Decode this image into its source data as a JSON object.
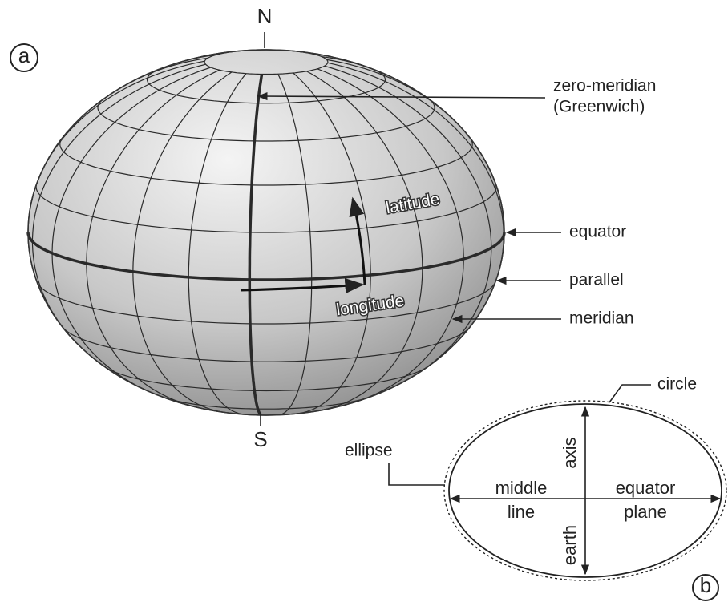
{
  "panel_a": {
    "label": "a",
    "north": "N",
    "south": "S",
    "zero_meridian": [
      "zero-meridian",
      "(Greenwich)"
    ],
    "latitude": "latitude",
    "longitude": "longitude",
    "equator": "equator",
    "parallel": "parallel",
    "meridian": "meridian"
  },
  "panel_b": {
    "label": "b",
    "circle": "circle",
    "ellipse": "ellipse",
    "axis": "axis",
    "earth": "earth",
    "middle": "middle",
    "line": "line",
    "equator": "equator",
    "plane": "plane"
  }
}
